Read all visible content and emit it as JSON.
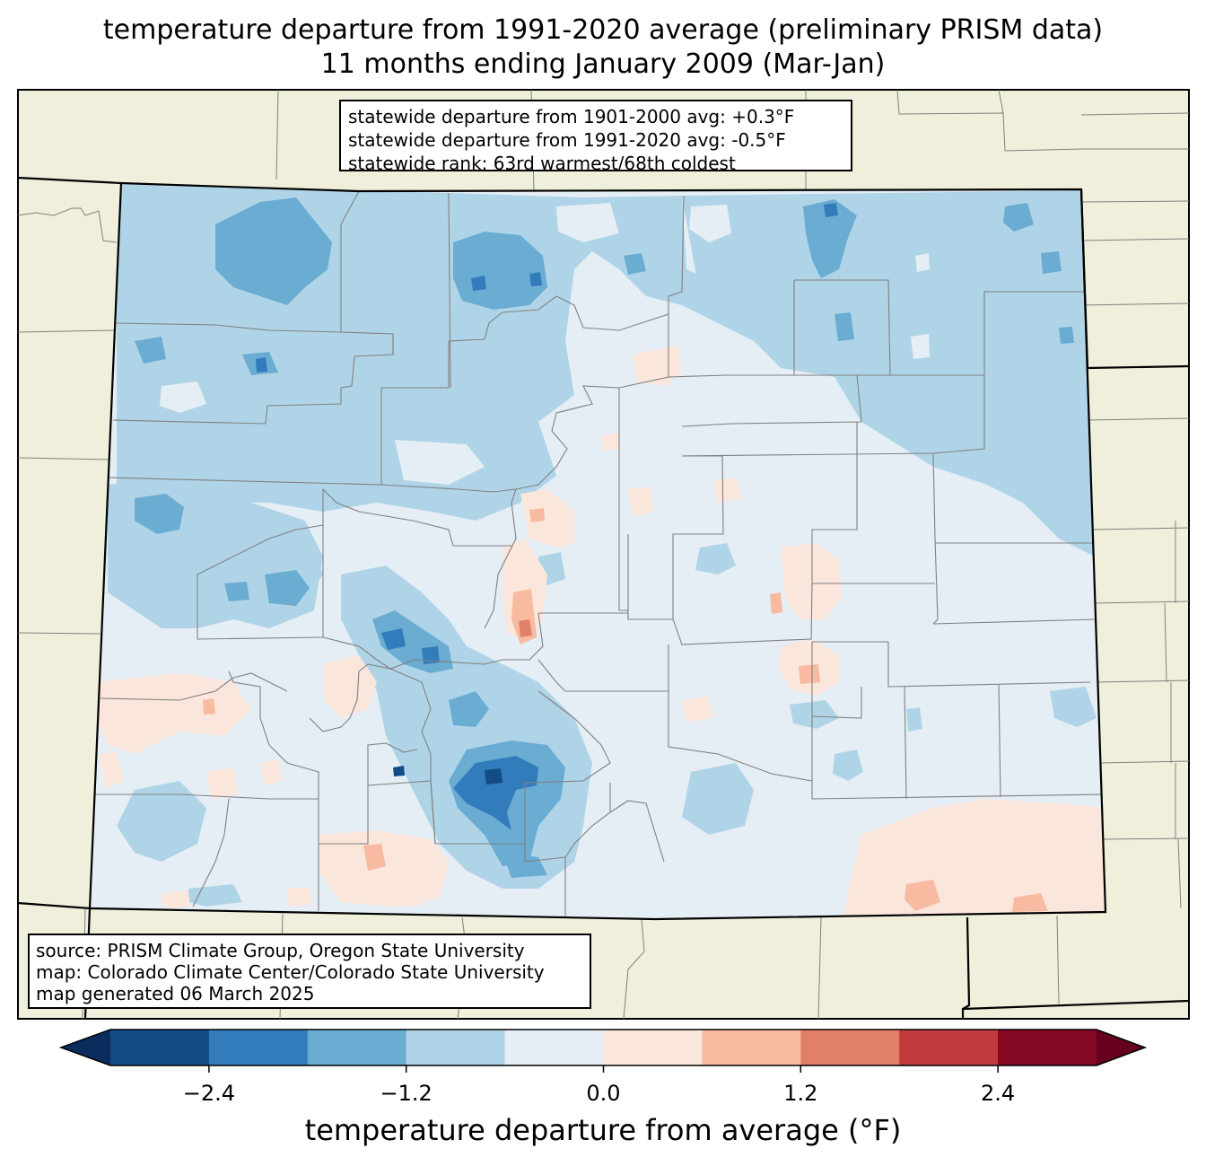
{
  "title": {
    "line1": "temperature departure from 1991-2020 average (preliminary PRISM data)",
    "line2": "11 months ending January 2009 (Mar-Jan)"
  },
  "stats": {
    "line1": "statewide departure from 1901-2000 avg: +0.3°F",
    "line2": "statewide departure from 1991-2020 avg: -0.5°F",
    "line3": "statewide rank: 63rd warmest/68th coldest"
  },
  "source": {
    "line1": "source: PRISM Climate Group, Oregon State University",
    "line2": "map: Colorado Climate Center/Colorado State University",
    "line3": "map generated 06 March 2025"
  },
  "colorbar": {
    "label": "temperature departure from average (°F)",
    "ticks": [
      "−2.4",
      "−1.2",
      "0.0",
      "1.2",
      "2.4"
    ],
    "tick_values": [
      -2.4,
      -1.2,
      0.0,
      1.2,
      2.4
    ],
    "range": [
      -3.0,
      3.0
    ],
    "step": 0.6,
    "colors": [
      "#134b87",
      "#327cbb",
      "#6aacd2",
      "#b0d4e7",
      "#e5eef5",
      "#fbe6dc",
      "#f8baa0",
      "#e08069",
      "#c13b3d",
      "#860a24"
    ],
    "under_color": "#0a2d5e",
    "over_color": "#67001f"
  },
  "map_colors": {
    "land": "#efefdc",
    "state_border": "#000000",
    "county_border": "#808080"
  }
}
